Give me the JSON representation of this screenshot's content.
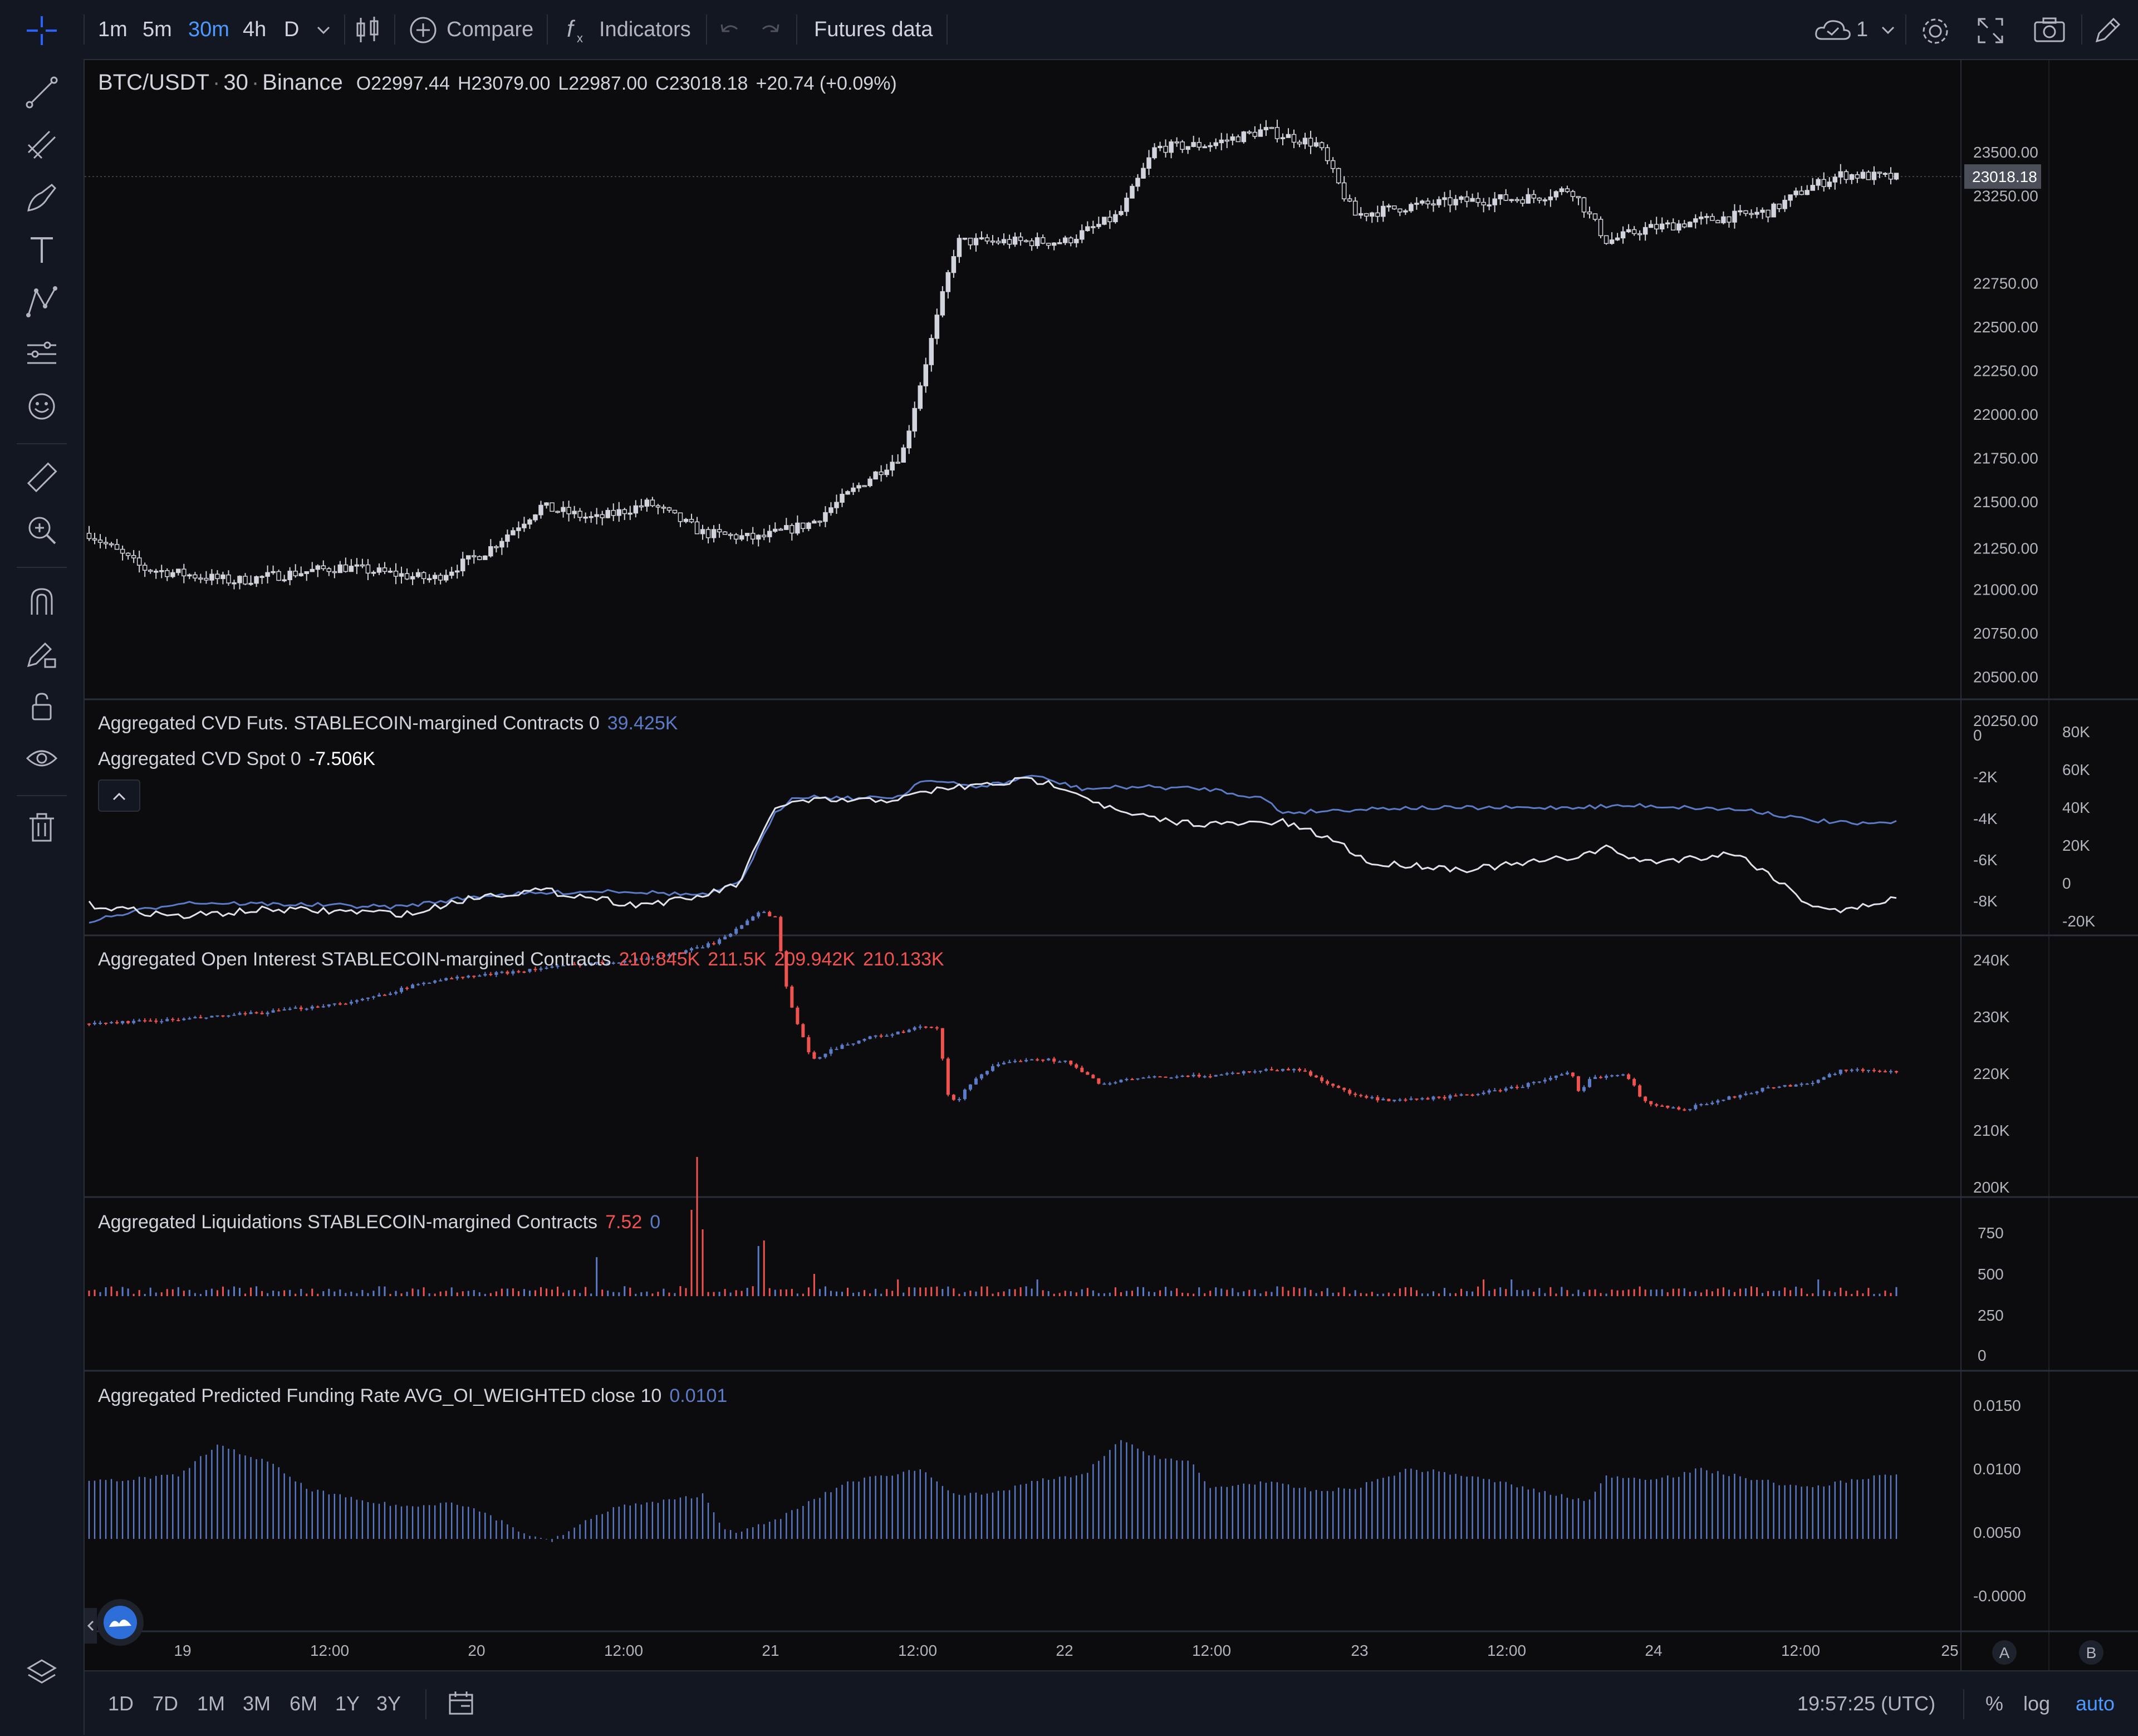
{
  "toolbar": {
    "intervals": [
      "1m",
      "5m",
      "30m",
      "4h",
      "D"
    ],
    "active_interval": "30m",
    "compare_label": "Compare",
    "indicators_label": "Indicators",
    "futures_label": "Futures data",
    "cloud_count": "1"
  },
  "main_chart": {
    "symbol": "BTC/USDT",
    "interval": "30",
    "exchange": "Binance",
    "o_label": "O",
    "o_value": "22997.44",
    "h_label": "H",
    "h_value": "23079.00",
    "l_label": "L",
    "l_value": "22987.00",
    "c_label": "C",
    "c_value": "23018.18",
    "change": "+20.74 (+0.09%)",
    "last_price_tag": "23018.18",
    "price_ticks": [
      "23500.00",
      "23250.00",
      "22750.00",
      "22500.00",
      "22250.00",
      "22000.00",
      "21750.00",
      "21500.00",
      "21250.00",
      "21000.00",
      "20750.00",
      "20500.00",
      "20250.00"
    ]
  },
  "cvd": {
    "futs_label": "Aggregated CVD Futs. STABLECOIN-margined Contracts 0",
    "futs_value": "39.425K",
    "spot_label": "Aggregated CVD Spot 0",
    "spot_value": "-7.506K",
    "left_ticks": [
      "0",
      "-2K",
      "-4K",
      "-6K",
      "-8K"
    ],
    "right_ticks": [
      "80K",
      "60K",
      "40K",
      "20K",
      "0",
      "-20K"
    ]
  },
  "open_interest": {
    "label": "Aggregated Open Interest STABLECOIN-margined Contracts",
    "values": [
      "210.845K",
      "211.5K",
      "209.942K",
      "210.133K"
    ],
    "ticks": [
      "240K",
      "230K",
      "220K",
      "210K",
      "200K"
    ]
  },
  "liquidations": {
    "label": "Aggregated Liquidations STABLECOIN-margined Contracts",
    "value_long": "7.52",
    "value_short": "0",
    "ticks": [
      "750",
      "500",
      "250",
      "0"
    ]
  },
  "funding": {
    "label": "Aggregated Predicted Funding Rate AVG_OI_WEIGHTED close 10",
    "value": "0.0101",
    "ticks": [
      "0.0150",
      "0.0100",
      "0.0050",
      "-0.0000"
    ]
  },
  "time_axis": {
    "labels": [
      "19",
      "12:00",
      "20",
      "12:00",
      "21",
      "12:00",
      "22",
      "12:00",
      "23",
      "12:00",
      "24",
      "12:00",
      "25"
    ],
    "scale_a": "A",
    "scale_b": "B"
  },
  "bottombar": {
    "ranges": [
      "1D",
      "7D",
      "1M",
      "3M",
      "6M",
      "1Y",
      "3Y"
    ],
    "clock": "19:57:25 (UTC)",
    "percent": "%",
    "log": "log",
    "auto": "auto"
  },
  "colors": {
    "accent": "#2962ff",
    "accent_text": "#4c9aff",
    "up": "#5b7bc7",
    "down": "#ef5350",
    "candle": "#d1d4dc",
    "panel_bg": "#0c0c0e"
  },
  "icons": [
    "crosshair-icon",
    "trend-line-icon",
    "fib-icon",
    "brush-icon",
    "text-icon",
    "pattern-icon",
    "forecast-icon",
    "emoji-icon",
    "ruler-icon",
    "zoom-icon",
    "magnet-icon",
    "lock-drawing-icon",
    "lock-icon",
    "eye-icon",
    "trash-icon",
    "layers-icon"
  ]
}
